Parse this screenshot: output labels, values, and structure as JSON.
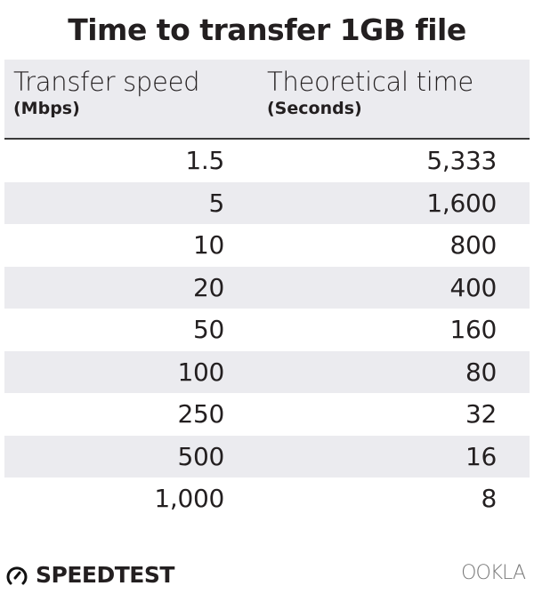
{
  "title": "Time to transfer 1GB file",
  "chart_data": {
    "type": "table",
    "title": "Time to transfer 1GB file",
    "columns": [
      {
        "label": "Transfer speed",
        "unit": "(Mbps)"
      },
      {
        "label": "Theoretical time",
        "unit": "(Seconds)"
      }
    ],
    "rows": [
      [
        "1.5",
        "5,333"
      ],
      [
        "5",
        "1,600"
      ],
      [
        "10",
        "800"
      ],
      [
        "20",
        "400"
      ],
      [
        "50",
        "160"
      ],
      [
        "100",
        "80"
      ],
      [
        "250",
        "32"
      ],
      [
        "500",
        "16"
      ],
      [
        "1,000",
        "8"
      ]
    ],
    "stripe_color": "#ebebef"
  },
  "footer": {
    "left_logo": "SPEEDTEST",
    "left_icon": "speedometer-icon",
    "right_logo": "OOKLA"
  }
}
